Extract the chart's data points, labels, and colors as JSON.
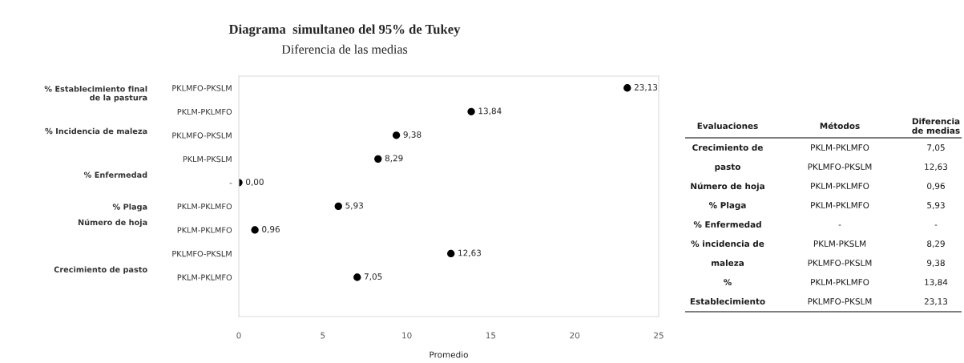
{
  "chart_data": [
    {
      "type": "scatter",
      "orientation": "horizontal",
      "title": "Diagrama  simultaneo del 95% de Tukey",
      "subtitle": "Diferencia de las medias",
      "xlabel": "Promedio",
      "categories": [
        "PKLMFO-PKSLM",
        "PKLM-PKLMFO",
        "PKLMFO-PKSLM",
        "PKLM-PKSLM",
        "-",
        "PKLM-PKLMFO",
        "PKLM-PKLMFO",
        "PKLMFO-PKSLM",
        "PKLM-PKLMFO"
      ],
      "values": [
        23.13,
        13.84,
        9.38,
        8.29,
        0.0,
        5.93,
        0.96,
        12.63,
        7.05
      ],
      "value_labels": [
        "23,13",
        "13,84",
        "9,38",
        "8,29",
        "0,00",
        "5,93",
        "0,96",
        "12,63",
        "7,05"
      ],
      "color": "#000000",
      "marker": "circle",
      "xlim": [
        0,
        25
      ],
      "xticks": [
        0,
        5,
        10,
        15,
        20,
        25
      ],
      "grid": false,
      "legend": false,
      "annotations": [
        "% Establecimiento final\nde la pastura",
        "% Incidencia de maleza",
        "% Enfermedad",
        "% Plaga",
        "Número de hoja",
        "Crecimiento de pasto"
      ]
    },
    {
      "type": "other",
      "annotations": [
        "Evaluaciones",
        "Métodos",
        "Diferencia\nde medias",
        "Crecimiento de",
        "PKLM-PKLMFO",
        "7,05",
        "pasto",
        "PKLMFO-PKSLM",
        "12,63",
        "Número de hoja",
        "PKLM-PKLMFO",
        "0,96",
        "% Plaga",
        "PKLM-PKLMFO",
        "5,93",
        "% Enfermedad",
        "-",
        "-",
        "% incidencia de",
        "PKLM-PKSLM",
        "8,29",
        "maleza",
        "PKLMFO-PKSLM",
        "9,38",
        "%",
        "PKLM-PKLMFO",
        "13,84",
        "Establecimiento",
        "PKLMFO-PKSLM",
        "23,13"
      ]
    }
  ]
}
